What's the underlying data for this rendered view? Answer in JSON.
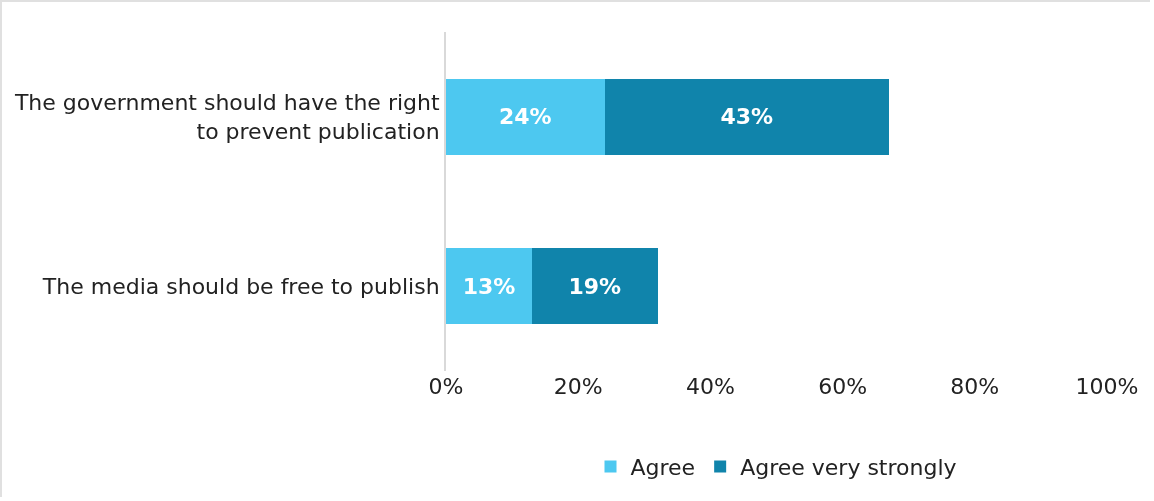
{
  "chart_data": {
    "type": "bar",
    "orientation": "horizontal",
    "stacked": true,
    "categories": [
      "The government should have the right to prevent publication",
      "The media should be free to publish"
    ],
    "series": [
      {
        "name": "Agree",
        "color": "#4dc8f0",
        "values": [
          24,
          13
        ],
        "value_labels": [
          "24%",
          "13%"
        ]
      },
      {
        "name": "Agree very strongly",
        "color": "#1084ab",
        "values": [
          43,
          19
        ],
        "value_labels": [
          "43%",
          "19%"
        ]
      }
    ],
    "xlim": [
      0,
      100
    ],
    "xticks": [
      {
        "value": 0,
        "label": "0%"
      },
      {
        "value": 20,
        "label": "20%"
      },
      {
        "value": 40,
        "label": "40%"
      },
      {
        "value": 60,
        "label": "60%"
      },
      {
        "value": 80,
        "label": "80%"
      },
      {
        "value": 100,
        "label": "100%"
      }
    ],
    "grid": false,
    "legend": "bottom"
  }
}
